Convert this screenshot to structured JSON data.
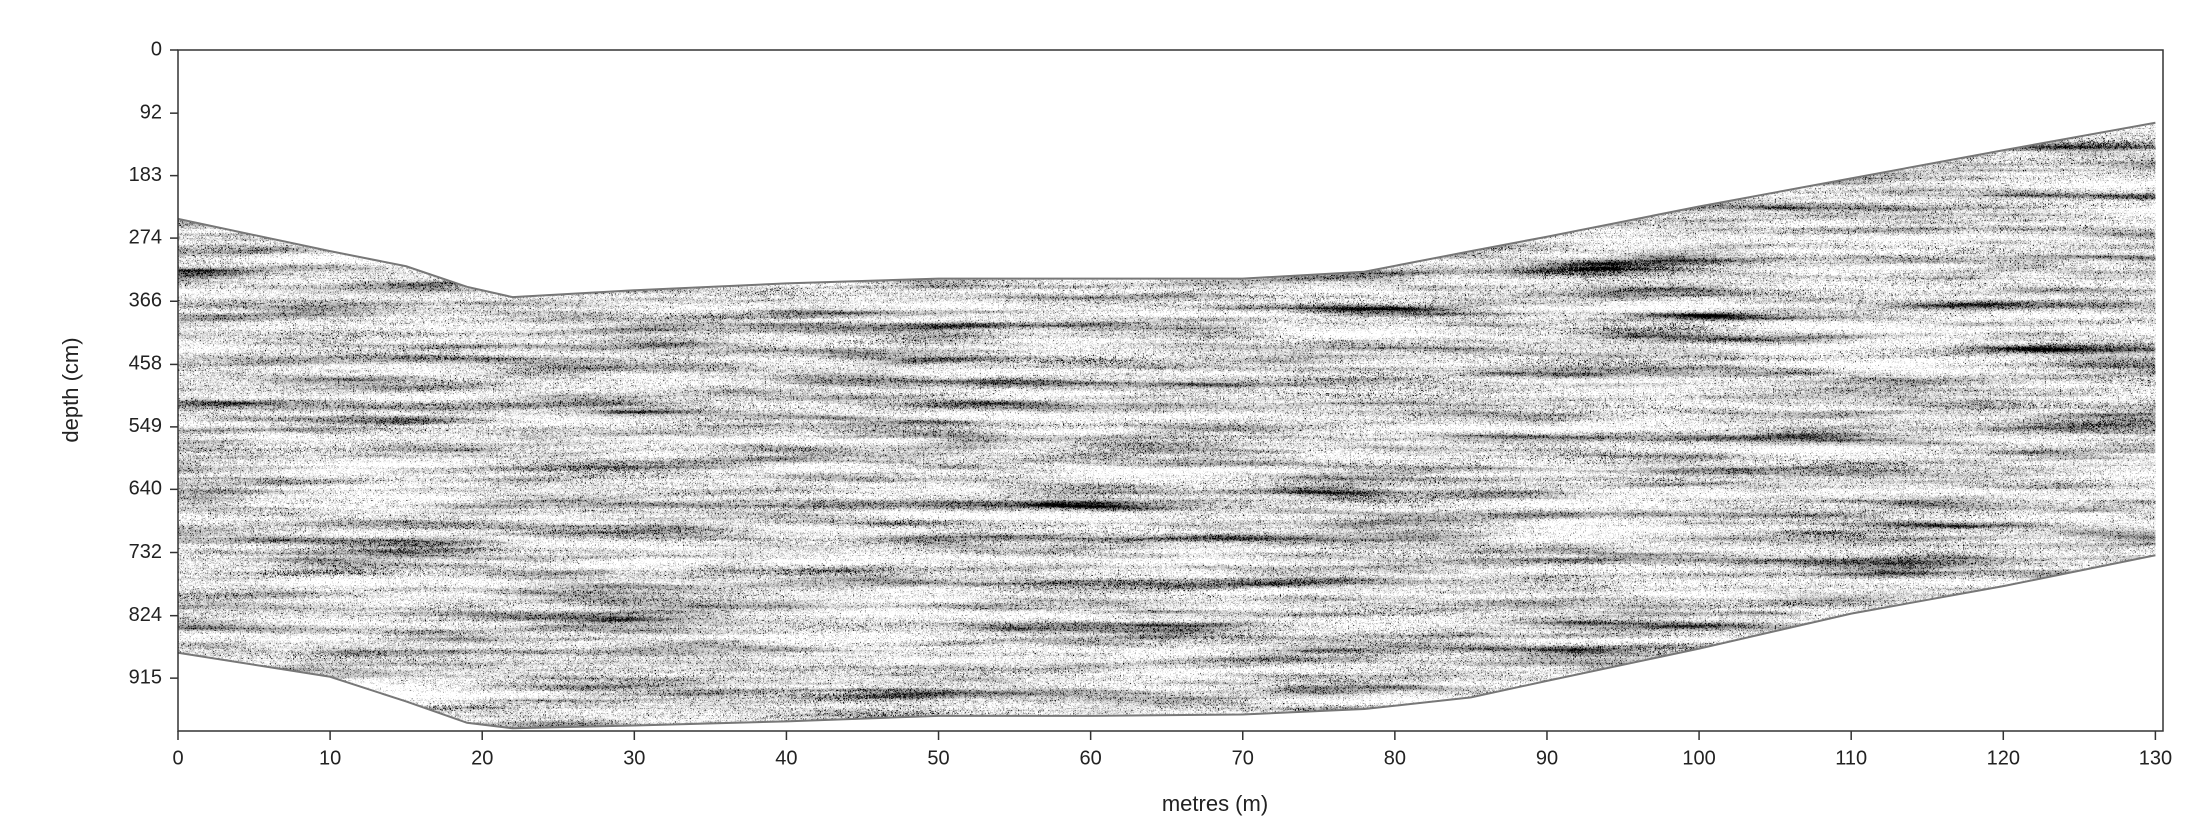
{
  "chart_data": {
    "type": "radargram",
    "xlabel": "metres (m)",
    "ylabel": "depth (cm)",
    "x": [
      0,
      10,
      15,
      19,
      22,
      30,
      40,
      50,
      60,
      70,
      78,
      85,
      90,
      100,
      110,
      120,
      130
    ],
    "series": [
      {
        "color": "#777777",
        "values": [
          246,
          293,
          315,
          345,
          360,
          350,
          340,
          333,
          333,
          333,
          323,
          293,
          272,
          228,
          187,
          146,
          106
        ]
      },
      {
        "color": "#777777",
        "values": [
          878,
          913,
          949,
          980,
          988,
          984,
          978,
          970,
          970,
          968,
          960,
          943,
          919,
          872,
          821,
          781,
          736
        ]
      }
    ],
    "xlim": [
      0,
      130.5
    ],
    "ylim": [
      0,
      992
    ],
    "y_inverted": true,
    "xticks": [
      0,
      10,
      20,
      30,
      40,
      50,
      60,
      70,
      80,
      90,
      100,
      110,
      120,
      130
    ],
    "yticks": [
      0,
      92,
      183,
      274,
      366,
      458,
      549,
      640,
      732,
      824,
      915
    ]
  }
}
